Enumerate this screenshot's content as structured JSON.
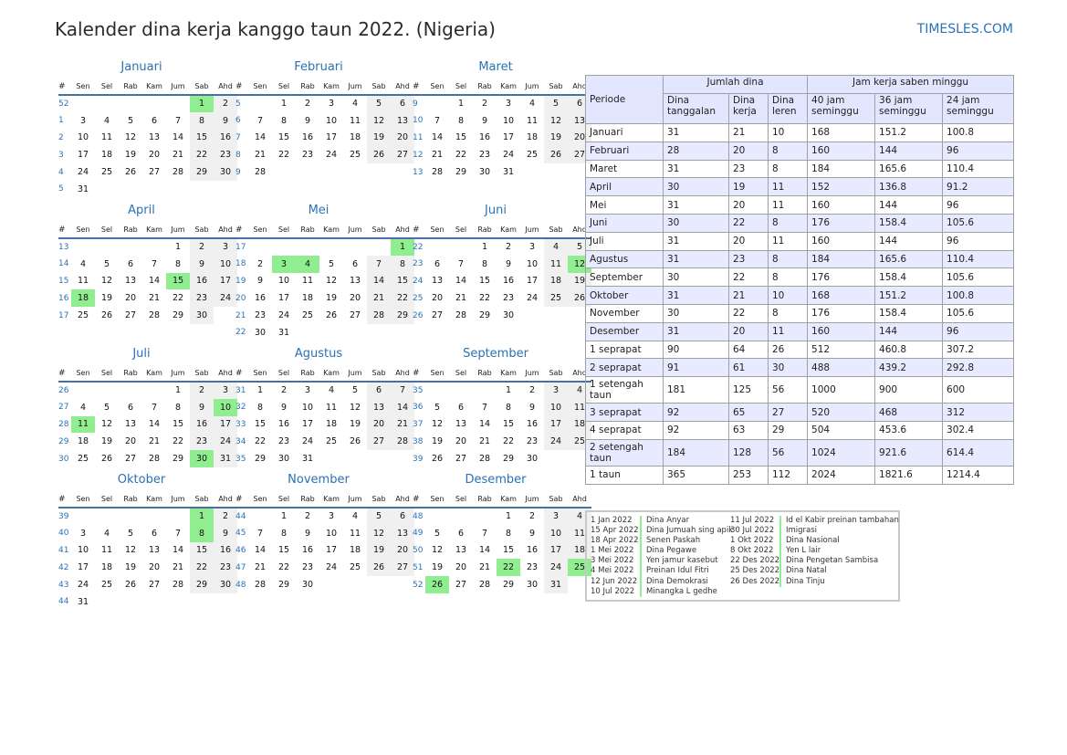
{
  "header": {
    "title": "Kalender dina kerja kanggo taun 2022. (Nigeria)",
    "site": "TIMESLES.COM"
  },
  "weekdays": [
    "Sen",
    "Sel",
    "Rab",
    "Kam",
    "Jum",
    "Sab",
    "Ahd"
  ],
  "week_symbol": "#",
  "year": 2022,
  "months": [
    {
      "name": "Januari",
      "weeks": [
        52,
        1,
        2,
        3,
        4,
        5
      ],
      "holidays": [
        1
      ]
    },
    {
      "name": "Februari",
      "weeks": [
        5,
        6,
        7,
        8,
        9
      ],
      "holidays": []
    },
    {
      "name": "Maret",
      "weeks": [
        9,
        10,
        11,
        12,
        13
      ],
      "holidays": []
    },
    {
      "name": "April",
      "weeks": [
        13,
        14,
        15,
        16,
        17
      ],
      "holidays": [
        15,
        18
      ]
    },
    {
      "name": "Mei",
      "weeks": [
        17,
        18,
        19,
        20,
        21,
        22
      ],
      "holidays": [
        1,
        3,
        4
      ]
    },
    {
      "name": "Juni",
      "weeks": [
        22,
        23,
        24,
        25,
        26
      ],
      "holidays": [
        12
      ]
    },
    {
      "name": "Juli",
      "weeks": [
        26,
        27,
        28,
        29,
        30
      ],
      "holidays": [
        10,
        11,
        30
      ]
    },
    {
      "name": "Agustus",
      "weeks": [
        31,
        32,
        33,
        34,
        35
      ],
      "holidays": []
    },
    {
      "name": "September",
      "weeks": [
        35,
        36,
        37,
        38,
        39
      ],
      "holidays": []
    },
    {
      "name": "Oktober",
      "weeks": [
        39,
        40,
        41,
        42,
        43,
        44
      ],
      "holidays": [
        1,
        8
      ]
    },
    {
      "name": "November",
      "weeks": [
        44,
        45,
        46,
        47,
        48
      ],
      "holidays": []
    },
    {
      "name": "Desember",
      "weeks": [
        48,
        49,
        50,
        51,
        52
      ],
      "holidays": [
        22,
        25,
        26
      ]
    }
  ],
  "stats": {
    "headers": {
      "period": "Periode",
      "days_group": "Jumlah dina",
      "hours_group": "Jam kerja saben minggu",
      "calendar_days": "Dina tanggalan",
      "work_days": "Dina kerja",
      "off_days": "Dina leren",
      "h40": "40 jam seminggu",
      "h36": "36 jam seminggu",
      "h24": "24 jam seminggu"
    },
    "rows": [
      [
        "Januari",
        "31",
        "21",
        "10",
        "168",
        "151.2",
        "100.8"
      ],
      [
        "Februari",
        "28",
        "20",
        "8",
        "160",
        "144",
        "96"
      ],
      [
        "Maret",
        "31",
        "23",
        "8",
        "184",
        "165.6",
        "110.4"
      ],
      [
        "April",
        "30",
        "19",
        "11",
        "152",
        "136.8",
        "91.2"
      ],
      [
        "Mei",
        "31",
        "20",
        "11",
        "160",
        "144",
        "96"
      ],
      [
        "Juni",
        "30",
        "22",
        "8",
        "176",
        "158.4",
        "105.6"
      ],
      [
        "Juli",
        "31",
        "20",
        "11",
        "160",
        "144",
        "96"
      ],
      [
        "Agustus",
        "31",
        "23",
        "8",
        "184",
        "165.6",
        "110.4"
      ],
      [
        "September",
        "30",
        "22",
        "8",
        "176",
        "158.4",
        "105.6"
      ],
      [
        "Oktober",
        "31",
        "21",
        "10",
        "168",
        "151.2",
        "100.8"
      ],
      [
        "November",
        "30",
        "22",
        "8",
        "176",
        "158.4",
        "105.6"
      ],
      [
        "Desember",
        "31",
        "20",
        "11",
        "160",
        "144",
        "96"
      ],
      [
        "1 seprapat",
        "90",
        "64",
        "26",
        "512",
        "460.8",
        "307.2"
      ],
      [
        "2 seprapat",
        "91",
        "61",
        "30",
        "488",
        "439.2",
        "292.8"
      ],
      [
        "1 setengah taun",
        "181",
        "125",
        "56",
        "1000",
        "900",
        "600"
      ],
      [
        "3 seprapat",
        "92",
        "65",
        "27",
        "520",
        "468",
        "312"
      ],
      [
        "4 seprapat",
        "92",
        "63",
        "29",
        "504",
        "453.6",
        "302.4"
      ],
      [
        "2 setengah taun",
        "184",
        "128",
        "56",
        "1024",
        "921.6",
        "614.4"
      ],
      [
        "1 taun",
        "365",
        "253",
        "112",
        "2024",
        "1821.6",
        "1214.4"
      ]
    ]
  },
  "holiday_list": [
    [
      {
        "date": "1 Jan 2022",
        "name": "Dina Anyar"
      },
      {
        "date": "15 Apr 2022",
        "name": "Dina Jumuah sing apik"
      },
      {
        "date": "18 Apr 2022",
        "name": "Senen Paskah"
      },
      {
        "date": "1 Mei 2022",
        "name": "Dina Pegawe"
      },
      {
        "date": "3 Mei 2022",
        "name": "Yen jamur kasebut"
      },
      {
        "date": "4 Mei 2022",
        "name": "Preinan Idul Fitri"
      },
      {
        "date": "12 Jun 2022",
        "name": "Dina Demokrasi"
      },
      {
        "date": "10 Jul 2022",
        "name": "Minangka L gedhe"
      }
    ],
    [
      {
        "date": "11 Jul 2022",
        "name": "Id el Kabir preinan tambahan"
      },
      {
        "date": "30 Jul 2022",
        "name": "Imigrasi"
      },
      {
        "date": "1 Okt 2022",
        "name": "Dina Nasional"
      },
      {
        "date": "8 Okt 2022",
        "name": "Yen L lair"
      },
      {
        "date": "22 Des 2022",
        "name": "Dina Pengetan Sambisa"
      },
      {
        "date": "25 Des 2022",
        "name": "Dina Natal"
      },
      {
        "date": "26 Des 2022",
        "name": "Dina Tinju"
      }
    ]
  ]
}
